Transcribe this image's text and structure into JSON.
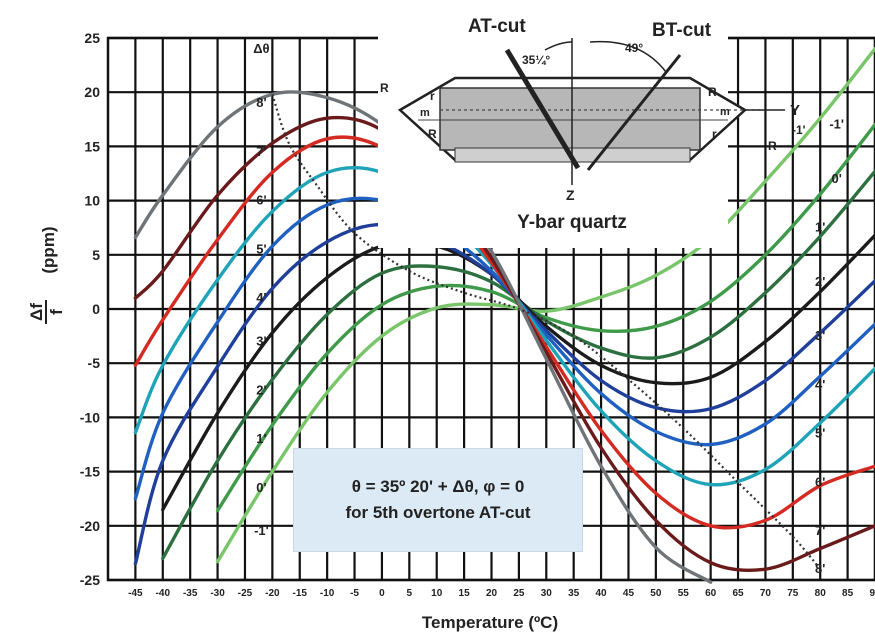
{
  "chart_data": {
    "type": "line",
    "xlabel": "Temperature (ºC)",
    "ylabel_main": "Δf",
    "ylabel_denom": "f",
    "ylabel_unit": "(ppm)",
    "x_ticks": [
      "-45",
      "-40",
      "-35",
      "-30",
      "-25",
      "-20",
      "-15",
      "-10",
      "-5",
      "0",
      "5",
      "10",
      "15",
      "20",
      "25",
      "30",
      "35",
      "40",
      "45",
      "50",
      "55",
      "60",
      "65",
      "70",
      "75",
      "80",
      "85",
      "90"
    ],
    "y_ticks": [
      "25",
      "20",
      "15",
      "10",
      "5",
      "0",
      "-5",
      "-10",
      "-15",
      "-20",
      "-25"
    ],
    "xlim": [
      -50,
      90
    ],
    "ylim": [
      -25,
      25
    ],
    "grid": true,
    "series": [
      {
        "name": "-1'",
        "color": "#79c56a",
        "points": [
          [
            -30,
            -23.3
          ],
          [
            -20,
            -15
          ],
          [
            -10,
            -7.7
          ],
          [
            0,
            -2.5
          ],
          [
            10,
            0.1
          ],
          [
            20,
            0.4
          ],
          [
            30,
            -0.2
          ],
          [
            40,
            1.1
          ],
          [
            50,
            3.1
          ],
          [
            60,
            6.5
          ],
          [
            70,
            11.8
          ],
          [
            80,
            17.6
          ],
          [
            90,
            24
          ]
        ]
      },
      {
        "name": "0'",
        "color": "#3f9a4a",
        "points": [
          [
            -30,
            -18.6
          ],
          [
            -20,
            -10.7
          ],
          [
            -10,
            -4.1
          ],
          [
            0,
            0.4
          ],
          [
            10,
            2.1
          ],
          [
            20,
            1.6
          ],
          [
            30,
            -0.8
          ],
          [
            40,
            -2
          ],
          [
            50,
            -1.6
          ],
          [
            60,
            0.7
          ],
          [
            70,
            5
          ],
          [
            80,
            10.6
          ],
          [
            90,
            17
          ]
        ]
      },
      {
        "name": "1'",
        "color": "#2d7040",
        "points": [
          [
            -40,
            -23
          ],
          [
            -30,
            -14
          ],
          [
            -20,
            -6.5
          ],
          [
            -10,
            -0.5
          ],
          [
            0,
            3.3
          ],
          [
            10,
            3.9
          ],
          [
            20,
            2.5
          ],
          [
            30,
            -1.1
          ],
          [
            40,
            -3.6
          ],
          [
            50,
            -4.5
          ],
          [
            60,
            -2.6
          ],
          [
            70,
            1.5
          ],
          [
            80,
            6.7
          ],
          [
            90,
            12.7
          ]
        ]
      },
      {
        "name": "2'",
        "color": "#1b1b1b",
        "points": [
          [
            -40,
            -18.5
          ],
          [
            -30,
            -9.6
          ],
          [
            -20,
            -2.2
          ],
          [
            -10,
            2.9
          ],
          [
            0,
            5.8
          ],
          [
            10,
            5.8
          ],
          [
            20,
            3.2
          ],
          [
            30,
            -1.6
          ],
          [
            40,
            -5.2
          ],
          [
            50,
            -6.8
          ],
          [
            60,
            -6.3
          ],
          [
            70,
            -3
          ],
          [
            80,
            1.6
          ],
          [
            90,
            6.8
          ]
        ]
      },
      {
        "name": "3'",
        "color": "#1f3f9a",
        "points": [
          [
            -45,
            -23.5
          ],
          [
            -40,
            -14
          ],
          [
            -30,
            -5.3
          ],
          [
            -20,
            1.9
          ],
          [
            -10,
            6.2
          ],
          [
            0,
            7.8
          ],
          [
            10,
            6.3
          ],
          [
            20,
            3.2
          ],
          [
            30,
            -2
          ],
          [
            40,
            -6.6
          ],
          [
            50,
            -9.1
          ],
          [
            60,
            -9.2
          ],
          [
            70,
            -6.6
          ],
          [
            80,
            -2.2
          ],
          [
            90,
            2.6
          ]
        ]
      },
      {
        "name": "4'",
        "color": "#1f60c0",
        "points": [
          [
            -45,
            -17.5
          ],
          [
            -40,
            -9.6
          ],
          [
            -30,
            -1.2
          ],
          [
            -20,
            5.8
          ],
          [
            -10,
            9.6
          ],
          [
            0,
            10
          ],
          [
            10,
            7.5
          ],
          [
            20,
            3.5
          ],
          [
            30,
            -2.4
          ],
          [
            40,
            -7.8
          ],
          [
            50,
            -11.3
          ],
          [
            60,
            -12.5
          ],
          [
            70,
            -10.6
          ],
          [
            80,
            -6.2
          ],
          [
            90,
            -1.4
          ]
        ]
      },
      {
        "name": "5'",
        "color": "#1fa3b8",
        "points": [
          [
            -45,
            -11.4
          ],
          [
            -40,
            -5.2
          ],
          [
            -30,
            2.7
          ],
          [
            -20,
            9
          ],
          [
            -10,
            12.6
          ],
          [
            0,
            12.6
          ],
          [
            10,
            9.2
          ],
          [
            20,
            4.1
          ],
          [
            30,
            -2.9
          ],
          [
            40,
            -9.4
          ],
          [
            50,
            -14
          ],
          [
            60,
            -16.2
          ],
          [
            70,
            -14.8
          ],
          [
            80,
            -10.5
          ],
          [
            90,
            -5.5
          ]
        ]
      },
      {
        "name": "6'",
        "color": "#d42a22",
        "points": [
          [
            -45,
            -5.2
          ],
          [
            -40,
            -1
          ],
          [
            -30,
            6.4
          ],
          [
            -20,
            12.6
          ],
          [
            -10,
            15.7
          ],
          [
            0,
            14.9
          ],
          [
            10,
            10.6
          ],
          [
            20,
            4.3
          ],
          [
            30,
            -3.5
          ],
          [
            40,
            -11.2
          ],
          [
            50,
            -17
          ],
          [
            60,
            -20
          ],
          [
            70,
            -19.5
          ],
          [
            80,
            -16.3
          ],
          [
            90,
            -14.5
          ]
        ]
      },
      {
        "name": "7'",
        "color": "#6a1a1a",
        "points": [
          [
            -45,
            1
          ],
          [
            -40,
            3.5
          ],
          [
            -30,
            10.5
          ],
          [
            -20,
            15.3
          ],
          [
            -10,
            17.6
          ],
          [
            0,
            16.5
          ],
          [
            10,
            11.6
          ],
          [
            20,
            4.7
          ],
          [
            30,
            -4
          ],
          [
            40,
            -12.8
          ],
          [
            50,
            -19.5
          ],
          [
            60,
            -23.4
          ],
          [
            70,
            -24
          ],
          [
            80,
            -22.1
          ],
          [
            90,
            -20
          ]
        ]
      },
      {
        "name": "8'",
        "color": "#6f7478",
        "points": [
          [
            -45,
            6.6
          ],
          [
            -40,
            10.5
          ],
          [
            -30,
            16.8
          ],
          [
            -20,
            19.8
          ],
          [
            -10,
            19.5
          ],
          [
            0,
            17
          ],
          [
            10,
            12
          ],
          [
            20,
            5.3
          ],
          [
            30,
            -4.6
          ],
          [
            40,
            -14.5
          ],
          [
            50,
            -22
          ],
          [
            60,
            -25.2
          ]
        ]
      }
    ],
    "curve_labels_left": [
      "Δθ",
      "8'",
      "7'",
      "6'",
      "5'",
      "4'",
      "3'",
      "2'",
      "1'",
      "0'",
      "-1'"
    ],
    "curve_labels_right": [
      "-1'",
      "0'",
      "1'",
      "2'",
      "3'",
      "4'",
      "5'",
      "6'",
      "7'",
      "8'"
    ],
    "dotted_turnover": true
  },
  "inset": {
    "at_cut": "AT-cut",
    "bt_cut": "BT-cut",
    "angle_at": "35¼°",
    "angle_bt": "49°",
    "axis_y": "Y",
    "axis_z": "Z",
    "axis_neg1": "-1'",
    "face_r": "r",
    "face_R": "R",
    "face_m": "m",
    "title": "Y-bar quartz"
  },
  "annotation": {
    "line1": "θ = 35º 20' + Δθ, φ = 0",
    "line2": "for 5th overtone AT-cut"
  }
}
